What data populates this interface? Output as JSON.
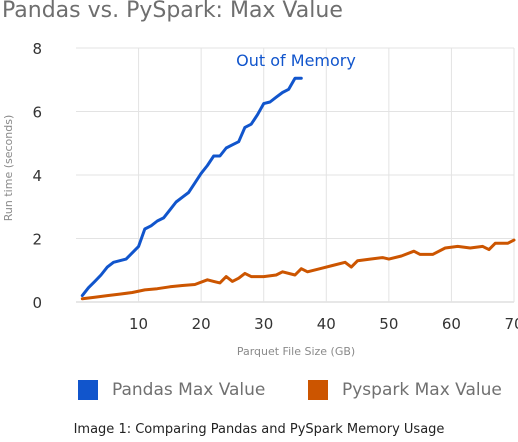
{
  "title": "Pandas vs. PySpark: Max Value",
  "caption": "Image 1: Comparing Pandas and PySpark Memory Usage",
  "chart_data": {
    "type": "line",
    "xlabel": "Parquet File Size (GB)",
    "ylabel": "Run time (seconds)",
    "xlim": [
      0,
      70
    ],
    "ylim": [
      0,
      8
    ],
    "x_ticks": [
      10,
      20,
      30,
      40,
      50,
      60,
      70
    ],
    "y_ticks": [
      0,
      2,
      4,
      6,
      8
    ],
    "grid": true,
    "legend_position": "bottom",
    "annotation": "Out of Memory",
    "series": [
      {
        "name": "Pandas Max Value",
        "color": "#1155cc",
        "x": [
          1,
          2,
          3,
          4,
          5,
          6,
          7,
          8,
          9,
          10,
          11,
          12,
          13,
          14,
          15,
          16,
          17,
          18,
          19,
          20,
          21,
          22,
          23,
          24,
          25,
          26,
          27,
          28,
          29,
          30,
          31,
          32,
          33,
          34,
          35,
          36
        ],
        "y": [
          0.2,
          0.45,
          0.65,
          0.85,
          1.1,
          1.25,
          1.3,
          1.35,
          1.55,
          1.75,
          2.3,
          2.4,
          2.55,
          2.65,
          2.9,
          3.15,
          3.3,
          3.45,
          3.75,
          4.05,
          4.3,
          4.6,
          4.6,
          4.85,
          4.95,
          5.05,
          5.5,
          5.6,
          5.9,
          6.25,
          6.3,
          6.45,
          6.6,
          6.7,
          7.05,
          7.05
        ]
      },
      {
        "name": "Pyspark Max Value",
        "color": "#cc5500",
        "x": [
          1,
          3,
          5,
          7,
          9,
          11,
          13,
          15,
          17,
          19,
          21,
          22,
          23,
          24,
          25,
          26,
          27,
          28,
          30,
          32,
          33,
          35,
          36,
          37,
          39,
          41,
          43,
          44,
          45,
          47,
          49,
          50,
          52,
          54,
          55,
          57,
          59,
          61,
          63,
          65,
          66,
          67,
          69,
          70
        ],
        "y": [
          0.1,
          0.15,
          0.2,
          0.25,
          0.3,
          0.38,
          0.42,
          0.48,
          0.52,
          0.55,
          0.7,
          0.65,
          0.6,
          0.8,
          0.65,
          0.75,
          0.9,
          0.8,
          0.8,
          0.85,
          0.95,
          0.85,
          1.05,
          0.95,
          1.05,
          1.15,
          1.25,
          1.1,
          1.3,
          1.35,
          1.4,
          1.35,
          1.45,
          1.6,
          1.5,
          1.5,
          1.7,
          1.75,
          1.7,
          1.75,
          1.65,
          1.85,
          1.85,
          1.95
        ]
      }
    ]
  }
}
